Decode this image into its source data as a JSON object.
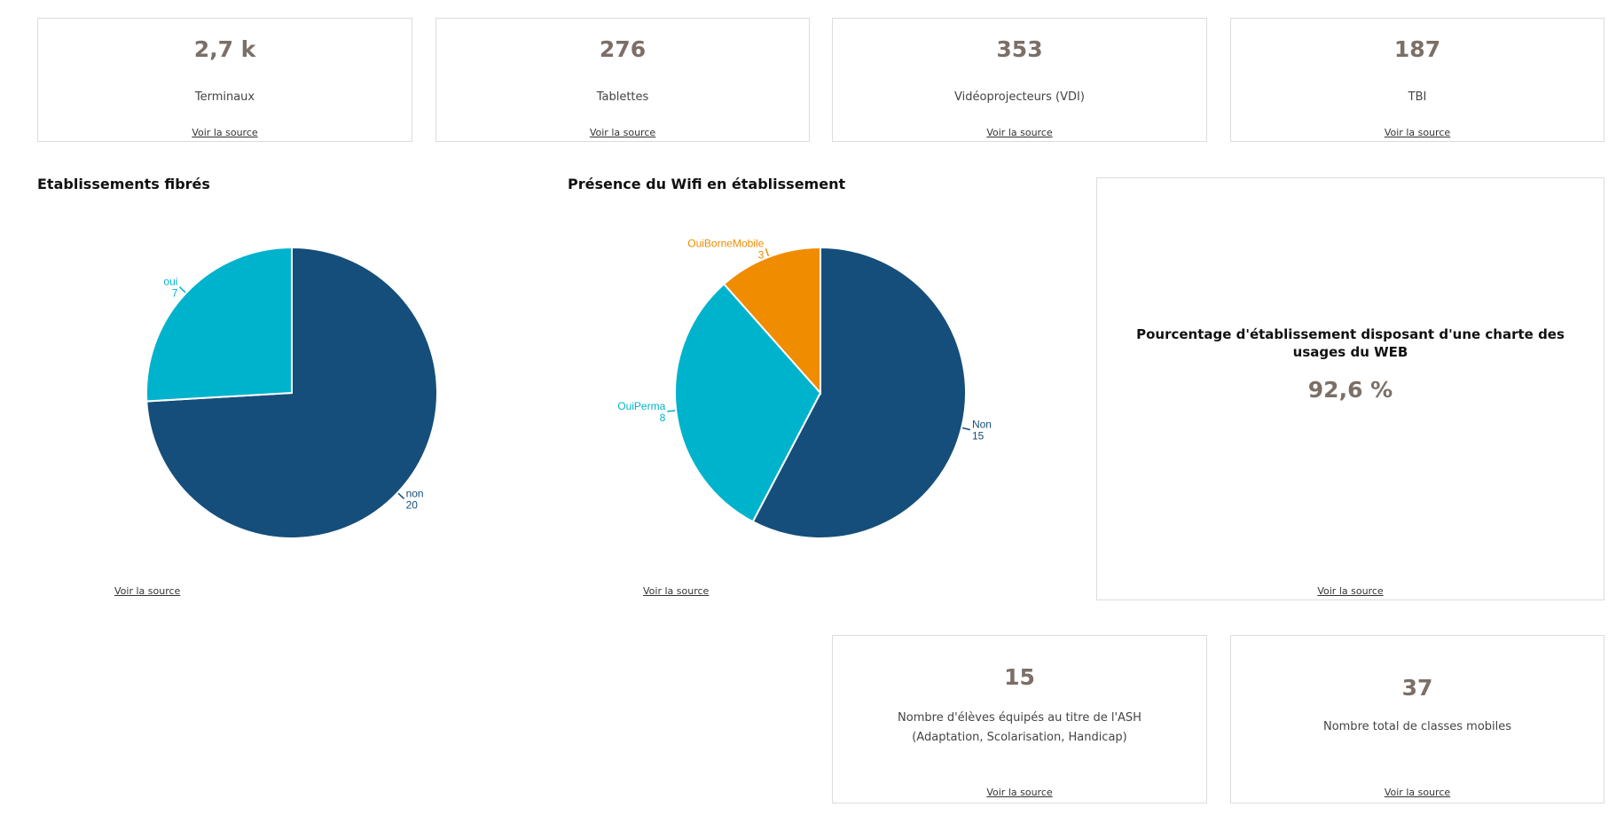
{
  "kpis": [
    {
      "value": "2,7 k",
      "label": "Terminaux",
      "link": "Voir la source"
    },
    {
      "value": "276",
      "label": "Tablettes",
      "link": "Voir la source"
    },
    {
      "value": "353",
      "label": "Vidéoprojecteurs (VDI)",
      "link": "Voir la source"
    },
    {
      "value": "187",
      "label": "TBI",
      "link": "Voir la source"
    }
  ],
  "web_charter": {
    "title": "Pourcentage d'établissement disposant d'une charte des usages du WEB",
    "value": "92,6 %",
    "link": "Voir la source"
  },
  "bottom_kpis": [
    {
      "value": "15",
      "label": "Nombre d'élèves équipés au titre de l'ASH (Adaptation, Scolarisation, Handicap)",
      "link": "Voir la source"
    },
    {
      "value": "37",
      "label": "Nombre total de classes mobiles",
      "link": "Voir la source"
    }
  ],
  "colors": {
    "dark_blue": "#154e7a",
    "cyan": "#00b3cc",
    "orange": "#f08c00",
    "value": "#7b6f67"
  },
  "chart_data": [
    {
      "type": "pie",
      "title": "Etablissements fibrés",
      "link": "Voir la source",
      "slices": [
        {
          "label": "non",
          "value": 20,
          "color": "#154e7a"
        },
        {
          "label": "oui",
          "value": 7,
          "color": "#00b3cc"
        }
      ]
    },
    {
      "type": "pie",
      "title": "Présence du Wifi en établissement",
      "link": "Voir la source",
      "slices": [
        {
          "label": "Non",
          "value": 15,
          "color": "#154e7a"
        },
        {
          "label": "OuiPerma",
          "value": 8,
          "color": "#00b3cc"
        },
        {
          "label": "OuiBorneMobile",
          "value": 3,
          "color": "#f08c00"
        }
      ]
    }
  ]
}
